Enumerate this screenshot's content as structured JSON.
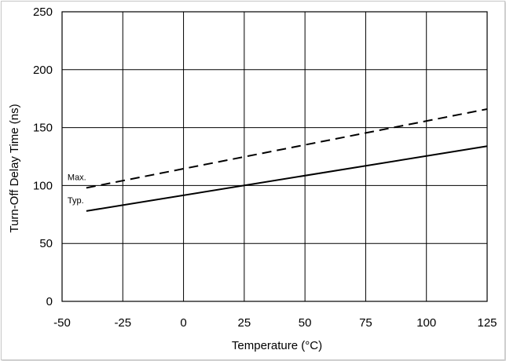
{
  "chart_data": {
    "type": "line",
    "title": "",
    "xlabel": "Temperature (°C)",
    "ylabel": "Turn-Off Delay Time (ns)",
    "xlim": [
      -50,
      125
    ],
    "ylim": [
      0,
      250
    ],
    "xticks": [
      "-50",
      "-25",
      "0",
      "25",
      "50",
      "75",
      "100",
      "125"
    ],
    "yticks": [
      "0",
      "50",
      "100",
      "150",
      "200",
      "250"
    ],
    "grid": true,
    "legend": "inline labels at left end of lines",
    "series": [
      {
        "name": "Max.",
        "style": "dashed",
        "color": "#000000",
        "x": [
          -40,
          125
        ],
        "y": [
          98,
          166
        ]
      },
      {
        "name": "Typ.",
        "style": "solid",
        "color": "#000000",
        "x": [
          -40,
          125
        ],
        "y": [
          78,
          134
        ]
      }
    ]
  }
}
